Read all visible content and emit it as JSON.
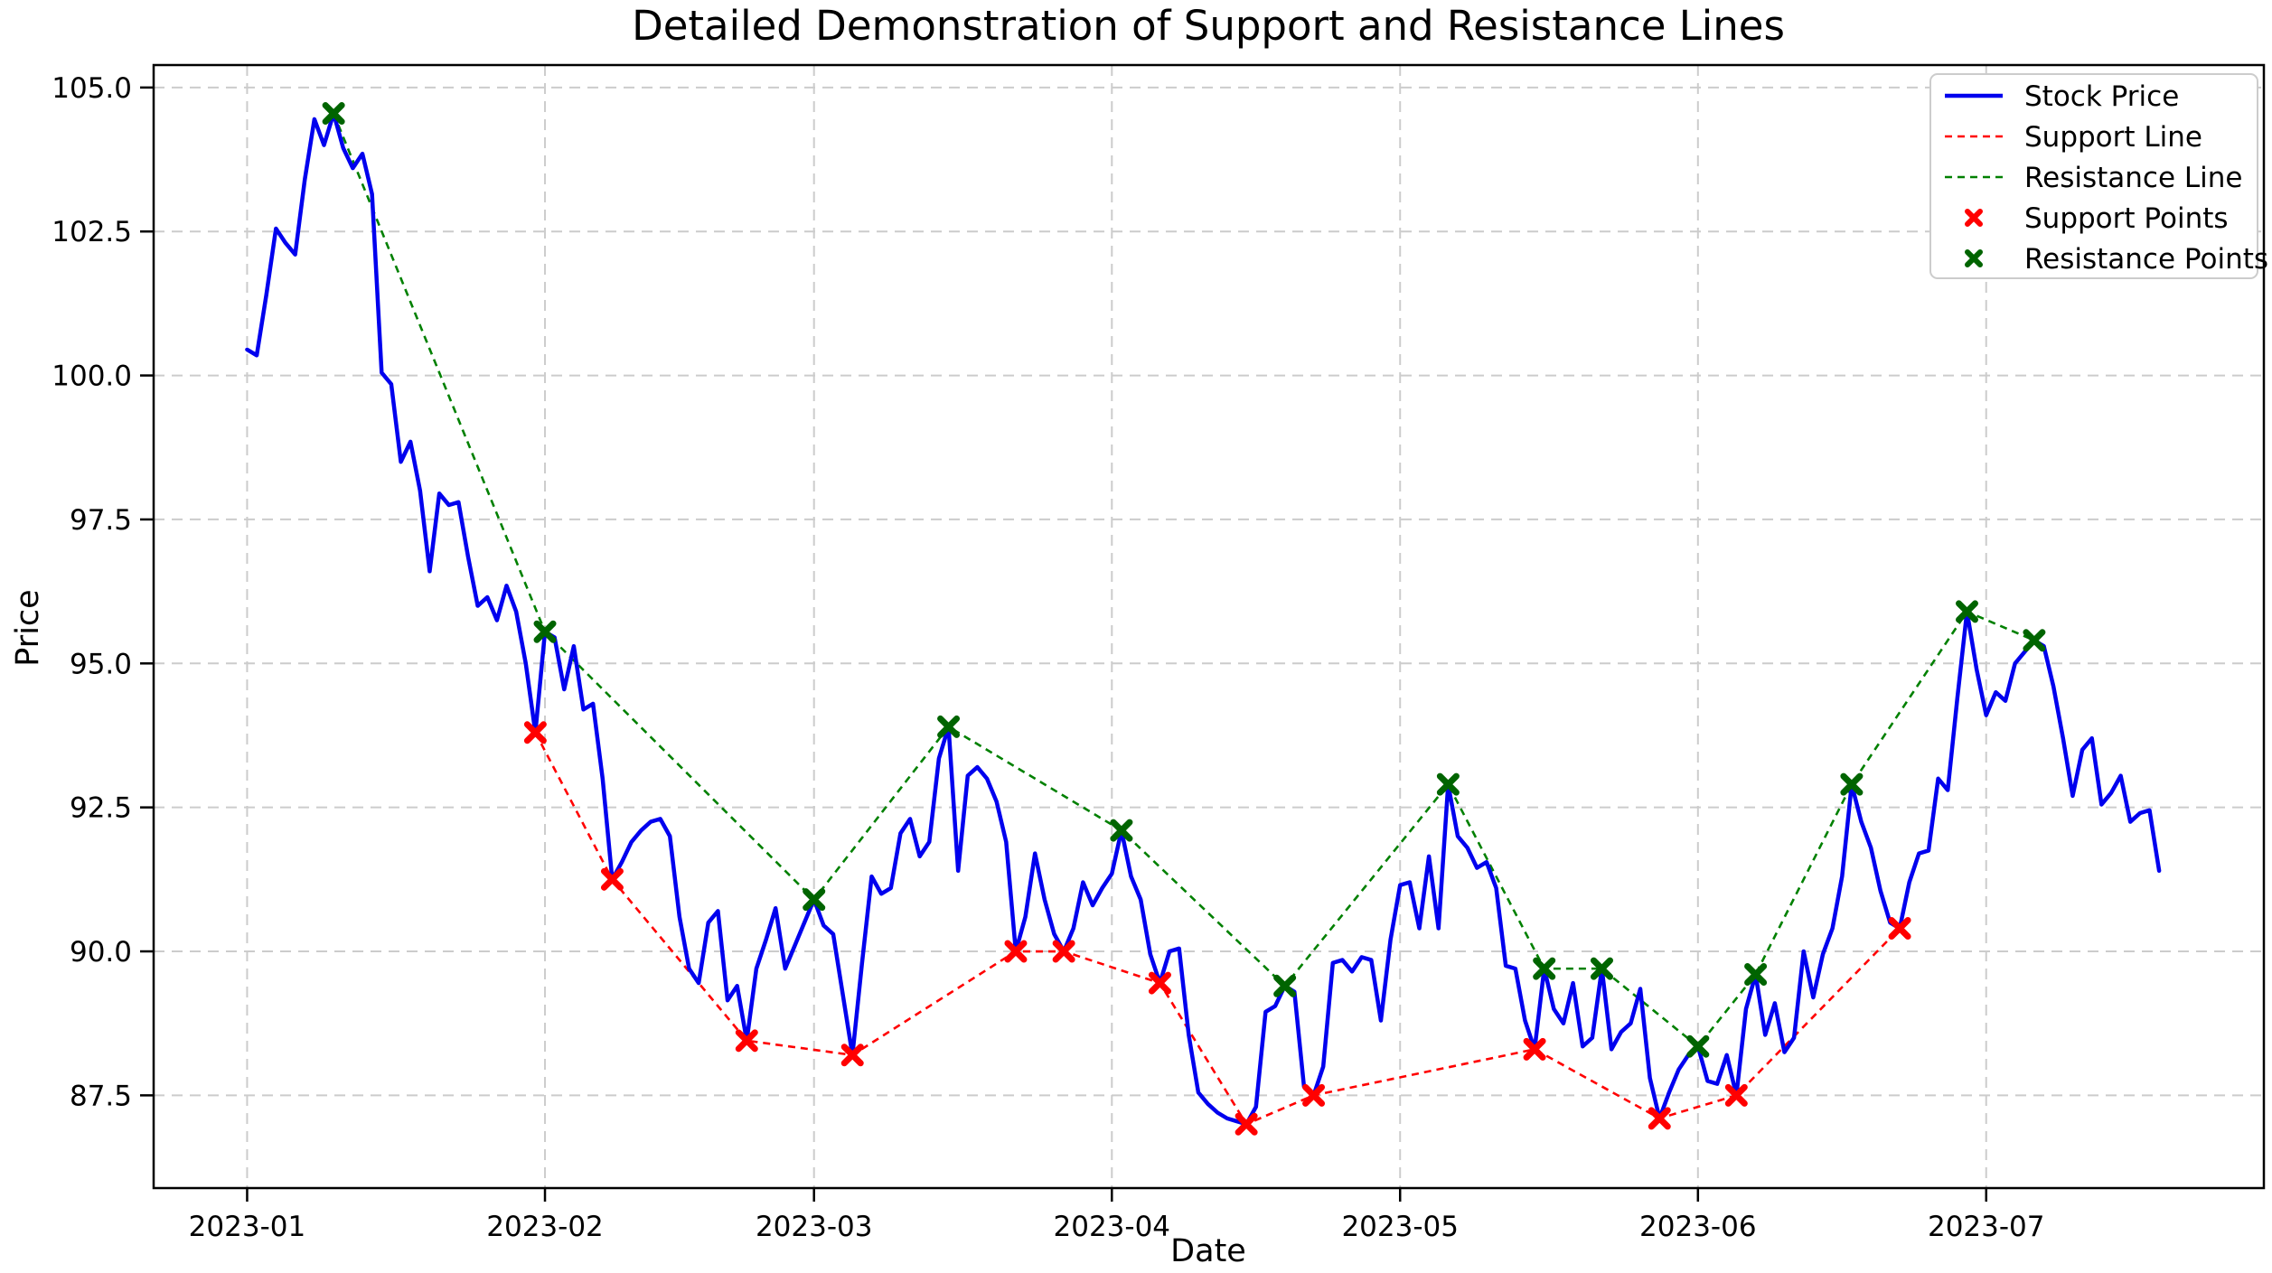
{
  "title": "Detailed Demonstration of Support and Resistance Lines",
  "chart_data": {
    "type": "line",
    "title": "Detailed Demonstration of Support and Resistance Lines",
    "xlabel": "Date",
    "ylabel": "Price",
    "start_date": "2023-01-01",
    "x_ticks": [
      {
        "day": 0,
        "label": "2023-01"
      },
      {
        "day": 31,
        "label": "2023-02"
      },
      {
        "day": 59,
        "label": "2023-03"
      },
      {
        "day": 90,
        "label": "2023-04"
      },
      {
        "day": 120,
        "label": "2023-05"
      },
      {
        "day": 151,
        "label": "2023-06"
      },
      {
        "day": 181,
        "label": "2023-07"
      }
    ],
    "y_ticks": [
      87.5,
      90.0,
      92.5,
      95.0,
      97.5,
      100.0,
      102.5,
      105.0
    ],
    "xlim_days": [
      -9.73,
      209.9
    ],
    "ylim": [
      85.89,
      105.39
    ],
    "grid": true,
    "legend_position": "upper right",
    "colors": {
      "stock": "#0000ee",
      "support_line": "#ff0000",
      "resistance_line": "#008000",
      "support_points": "#ff0000",
      "resistance_points": "#006400",
      "grid": "#cccccc",
      "spine": "#000000",
      "legend_border": "#cccccc"
    },
    "series": [
      {
        "name": "Stock Price",
        "kind": "line",
        "color": "#0000ee",
        "values": [
          100.45,
          100.35,
          101.4,
          102.55,
          102.3,
          102.1,
          103.4,
          104.45,
          104.0,
          104.55,
          103.95,
          103.6,
          103.85,
          103.15,
          100.05,
          99.85,
          98.5,
          98.85,
          98.0,
          96.6,
          97.95,
          97.75,
          97.8,
          96.85,
          96.0,
          96.15,
          95.75,
          96.35,
          95.9,
          95.0,
          93.8,
          95.55,
          95.45,
          94.55,
          95.3,
          94.2,
          94.3,
          93.0,
          91.25,
          91.55,
          91.9,
          92.1,
          92.25,
          92.3,
          92.0,
          90.6,
          89.7,
          89.45,
          90.5,
          90.7,
          89.15,
          89.4,
          88.45,
          89.7,
          90.2,
          90.75,
          89.7,
          90.1,
          90.5,
          90.9,
          90.45,
          90.3,
          89.25,
          88.2,
          89.8,
          91.3,
          91.0,
          91.1,
          92.05,
          92.3,
          91.65,
          91.9,
          93.35,
          93.9,
          91.4,
          93.05,
          93.2,
          93.0,
          92.6,
          91.9,
          90.0,
          90.6,
          91.7,
          90.9,
          90.3,
          90.0,
          90.4,
          91.2,
          90.8,
          91.1,
          91.35,
          92.1,
          91.3,
          90.9,
          89.95,
          89.45,
          90.0,
          90.05,
          88.55,
          87.55,
          87.35,
          87.2,
          87.1,
          87.05,
          87.0,
          87.3,
          88.95,
          89.05,
          89.4,
          89.3,
          87.65,
          87.5,
          88.0,
          89.8,
          89.85,
          89.65,
          89.9,
          89.85,
          88.8,
          90.2,
          91.15,
          91.2,
          90.4,
          91.65,
          90.4,
          92.9,
          92.0,
          91.8,
          91.45,
          91.55,
          91.1,
          89.75,
          89.7,
          88.8,
          88.3,
          89.7,
          89.0,
          88.75,
          89.45,
          88.35,
          88.5,
          89.7,
          88.3,
          88.6,
          88.75,
          89.35,
          87.8,
          87.1,
          87.55,
          87.95,
          88.2,
          88.35,
          87.75,
          87.7,
          88.2,
          87.5,
          89.0,
          89.6,
          88.55,
          89.1,
          88.25,
          88.5,
          90.0,
          89.2,
          89.95,
          90.4,
          91.3,
          92.9,
          92.25,
          91.8,
          91.05,
          90.5,
          90.4,
          91.2,
          91.7,
          91.75,
          93.0,
          92.8,
          94.4,
          95.9,
          94.9,
          94.1,
          94.5,
          94.35,
          95.0,
          95.2,
          95.4,
          95.3,
          94.6,
          93.7,
          92.7,
          93.5,
          93.7,
          92.55,
          92.75,
          93.05,
          92.25,
          92.4,
          92.45,
          91.4
        ]
      },
      {
        "name": "Support Line",
        "kind": "dashed-line",
        "color": "#ff0000",
        "points": [
          {
            "date": "2023-01-31",
            "value": 93.8
          },
          {
            "date": "2023-02-08",
            "value": 91.25
          },
          {
            "date": "2023-02-22",
            "value": 88.45
          },
          {
            "date": "2023-03-05",
            "value": 88.2
          },
          {
            "date": "2023-03-22",
            "value": 90.0
          },
          {
            "date": "2023-03-27",
            "value": 90.0
          },
          {
            "date": "2023-04-06",
            "value": 89.45
          },
          {
            "date": "2023-04-15",
            "value": 87.0
          },
          {
            "date": "2023-04-22",
            "value": 87.5
          },
          {
            "date": "2023-05-15",
            "value": 88.3
          },
          {
            "date": "2023-05-28",
            "value": 87.1
          },
          {
            "date": "2023-06-05",
            "value": 87.5
          },
          {
            "date": "2023-06-22",
            "value": 90.4
          }
        ]
      },
      {
        "name": "Resistance Line",
        "kind": "dashed-line",
        "color": "#008000",
        "points": [
          {
            "date": "2023-01-10",
            "value": 104.55
          },
          {
            "date": "2023-02-01",
            "value": 95.55
          },
          {
            "date": "2023-03-01",
            "value": 90.9
          },
          {
            "date": "2023-03-15",
            "value": 93.9
          },
          {
            "date": "2023-04-02",
            "value": 92.1
          },
          {
            "date": "2023-04-19",
            "value": 89.4
          },
          {
            "date": "2023-05-06",
            "value": 92.9
          },
          {
            "date": "2023-05-16",
            "value": 89.7
          },
          {
            "date": "2023-05-22",
            "value": 89.7
          },
          {
            "date": "2023-06-01",
            "value": 88.35
          },
          {
            "date": "2023-06-07",
            "value": 89.6
          },
          {
            "date": "2023-06-17",
            "value": 92.9
          },
          {
            "date": "2023-06-29",
            "value": 95.9
          },
          {
            "date": "2023-07-06",
            "value": 95.4
          }
        ]
      },
      {
        "name": "Support Points",
        "kind": "marker-x",
        "color": "#ff0000",
        "ref": 1
      },
      {
        "name": "Resistance Points",
        "kind": "marker-x",
        "color": "#006400",
        "ref": 2
      }
    ],
    "legend": [
      {
        "label": "Stock Price",
        "swatch": "line",
        "color": "#0000ee"
      },
      {
        "label": "Support Line",
        "swatch": "dashes",
        "color": "#ff0000"
      },
      {
        "label": "Resistance Line",
        "swatch": "dashes",
        "color": "#008000"
      },
      {
        "label": "Support Points",
        "swatch": "x",
        "color": "#ff0000"
      },
      {
        "label": "Resistance Points",
        "swatch": "x",
        "color": "#006400"
      }
    ]
  }
}
